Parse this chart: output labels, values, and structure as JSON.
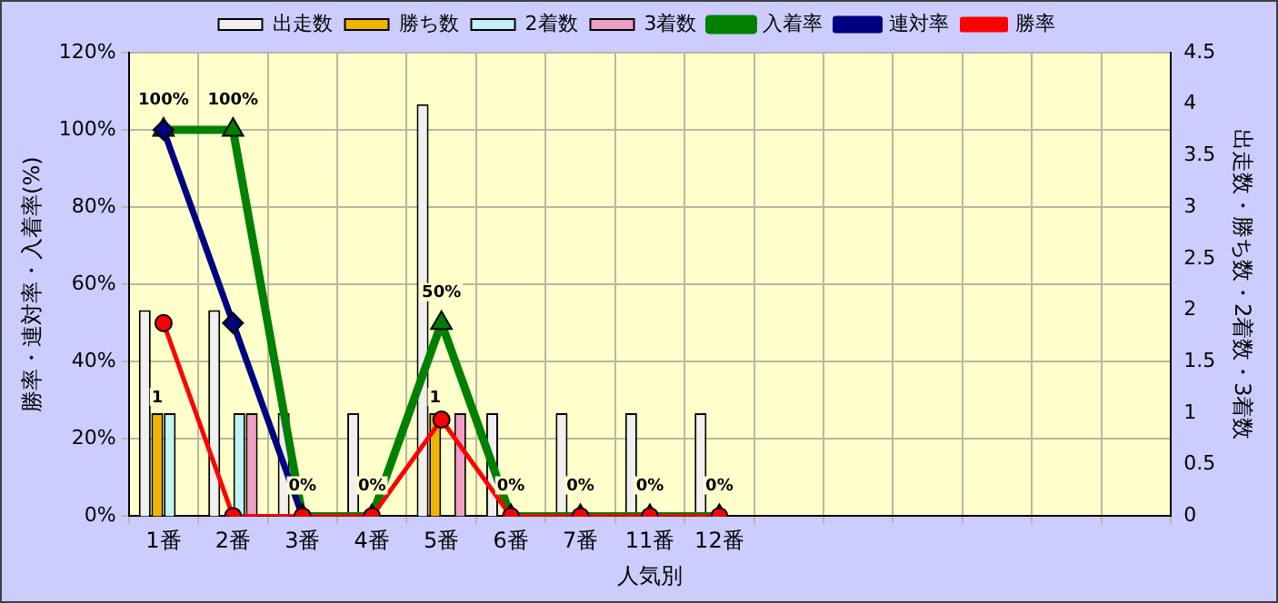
{
  "chart_data": {
    "type": "bar",
    "xlabel": "人気別",
    "ylabel": "勝率・連対率・入着率(%)",
    "y2label": "出走数・勝ち数・2着数・3着数",
    "categories": [
      "1番",
      "2番",
      "3番",
      "4番",
      "5番",
      "6番",
      "7番",
      "11番",
      "12番",
      null,
      null,
      null,
      null,
      null,
      null
    ],
    "series": [
      {
        "name": "出走数",
        "axis": "y2",
        "color": "#f0f0f0",
        "values": [
          2,
          2,
          1,
          1,
          4,
          1,
          1,
          1,
          1,
          null,
          null,
          null,
          null,
          null,
          null
        ]
      },
      {
        "name": "勝ち数",
        "axis": "y2",
        "color": "#f0b400",
        "values": [
          1,
          0,
          0,
          0,
          1,
          0,
          0,
          0,
          0,
          null,
          null,
          null,
          null,
          null,
          null
        ],
        "value_labels": [
          "1",
          null,
          null,
          null,
          "1",
          null,
          null,
          null,
          null,
          null,
          null,
          null,
          null,
          null,
          null
        ]
      },
      {
        "name": "2着数",
        "axis": "y2",
        "color": "#c0f4f4",
        "values": [
          1,
          1,
          0,
          0,
          0,
          0,
          0,
          0,
          0,
          null,
          null,
          null,
          null,
          null,
          null
        ]
      },
      {
        "name": "3着数",
        "axis": "y2",
        "color": "#f0a0c8",
        "values": [
          0,
          1,
          0,
          0,
          1,
          0,
          0,
          0,
          0,
          null,
          null,
          null,
          null,
          null,
          null
        ]
      },
      {
        "name": "入着率",
        "type": "line",
        "marker": "triangle",
        "color": "#008000",
        "values": [
          100,
          100,
          0,
          0,
          50,
          0,
          0,
          0,
          0,
          null,
          null,
          null,
          null,
          null,
          null
        ],
        "value_labels": [
          "100%",
          "100%",
          "0%",
          "0%",
          "50%",
          "0%",
          "0%",
          "0%",
          "0%",
          null,
          null,
          null,
          null,
          null,
          null
        ]
      },
      {
        "name": "連対率",
        "type": "line",
        "marker": "diamond",
        "color": "#000080",
        "values": [
          100,
          50,
          0,
          null,
          null,
          null,
          null,
          null,
          null,
          null,
          null,
          null,
          null,
          null,
          null
        ]
      },
      {
        "name": "勝率",
        "type": "line",
        "marker": "circle",
        "color": "#ff0000",
        "values": [
          50,
          0,
          0,
          0,
          25,
          0,
          0,
          0,
          0,
          null,
          null,
          null,
          null,
          null,
          null
        ]
      }
    ],
    "ylim": [
      0,
      120
    ],
    "yticks": [
      {
        "value": 0,
        "label": "0%"
      },
      {
        "value": 20,
        "label": "20%"
      },
      {
        "value": 40,
        "label": "40%"
      },
      {
        "value": 60,
        "label": "60%"
      },
      {
        "value": 80,
        "label": "80%"
      },
      {
        "value": 100,
        "label": "100%"
      },
      {
        "value": 120,
        "label": "120%"
      }
    ],
    "y2lim": [
      0,
      4.5
    ],
    "y2ticks": [
      0,
      0.5,
      1,
      1.5,
      2,
      2.5,
      3,
      3.5,
      4,
      4.5
    ],
    "grid": true,
    "legend": "top",
    "line_style": "solid"
  }
}
